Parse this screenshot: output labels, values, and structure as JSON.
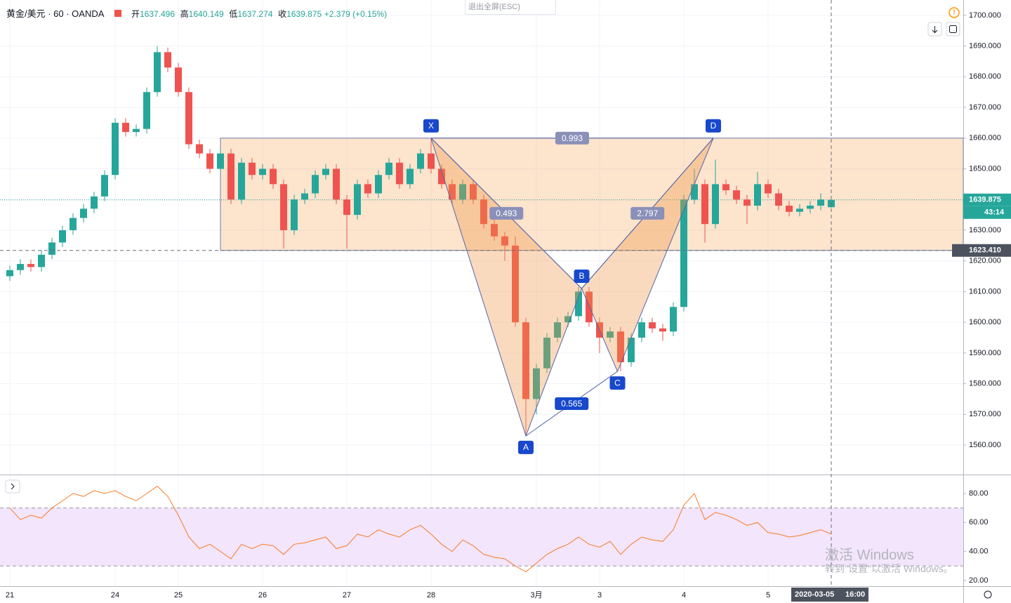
{
  "header": {
    "symbol": "黄金/美元 · 60 · OANDA",
    "open_label": "开",
    "open": "1637.496",
    "high_label": "高",
    "high": "1640.149",
    "low_label": "低",
    "low": "1637.274",
    "close_label": "收",
    "close": "1639.875",
    "change": "+2.379 (+0.15%)"
  },
  "ui": {
    "exit_fullscreen": "退出全屏(ESC)",
    "watermark_title": "激活 Windows",
    "watermark_text": "转到\"设置\"以激活 Windows。"
  },
  "chart_data": [
    {
      "type": "candlestick",
      "up_color": "#26a69a",
      "down_color": "#ef5350",
      "categories": [
        "21",
        null,
        null,
        null,
        null,
        null,
        null,
        null,
        null,
        null,
        "24",
        null,
        null,
        null,
        null,
        null,
        "25",
        null,
        null,
        null,
        null,
        null,
        null,
        null,
        "26",
        null,
        null,
        null,
        null,
        null,
        null,
        null,
        "27",
        null,
        null,
        null,
        null,
        null,
        null,
        null,
        "28",
        null,
        null,
        null,
        null,
        null,
        null,
        null,
        null,
        null,
        "3月",
        null,
        null,
        null,
        null,
        null,
        "3",
        null,
        null,
        null,
        null,
        null,
        null,
        null,
        "4",
        null,
        null,
        null,
        null,
        null,
        null,
        null,
        "5",
        null,
        null,
        null,
        null,
        null,
        null
      ],
      "open": [
        1615,
        1617,
        1619,
        1618,
        1622,
        1626,
        1630,
        1634,
        1637,
        1641,
        1648,
        1665,
        1662,
        1663,
        1675,
        1688,
        1683,
        1675,
        1658,
        1655,
        1650,
        1655,
        1640,
        1652,
        1648,
        1650,
        1645,
        1630,
        1640,
        1642,
        1648,
        1650,
        1640,
        1635,
        1645,
        1642,
        1648,
        1652,
        1645,
        1650,
        1655,
        1650,
        1645,
        1640,
        1645,
        1640,
        1632,
        1628,
        1625,
        1600,
        1575,
        1585,
        1595,
        1600,
        1602,
        1610,
        1600,
        1595,
        1597,
        1587,
        1595,
        1600,
        1598,
        1597,
        1605,
        1640,
        1645,
        1632,
        1645,
        1643,
        1640,
        1638,
        1645,
        1642,
        1638,
        1636,
        1637,
        1638,
        1637.496
      ],
      "high": [
        1618.5,
        1620.5,
        1620.5,
        1623.5,
        1627.5,
        1631.5,
        1635.5,
        1638.5,
        1642.5,
        1649.5,
        1666.5,
        1666.5,
        1664.5,
        1676.5,
        1690,
        1689.5,
        1684.5,
        1676.5,
        1659.5,
        1656.5,
        1656.5,
        1656.5,
        1653.5,
        1653.5,
        1651.5,
        1651.5,
        1646.5,
        1641.5,
        1643.5,
        1649.5,
        1651.5,
        1651.5,
        1641.5,
        1646.5,
        1646.5,
        1649.5,
        1653.5,
        1653.5,
        1651.5,
        1656.5,
        1660,
        1651.5,
        1646.5,
        1646.5,
        1646.5,
        1641.5,
        1633.5,
        1629.5,
        1628,
        1601.5,
        1586.5,
        1596.5,
        1601.5,
        1603.5,
        1611.5,
        1611.5,
        1601.5,
        1598.5,
        1598.5,
        1596.5,
        1601.5,
        1601.5,
        1599.5,
        1606.5,
        1641.5,
        1650,
        1646.5,
        1653,
        1646.5,
        1644.5,
        1641.5,
        1649,
        1646.5,
        1643.5,
        1639.5,
        1638.5,
        1639.5,
        1642,
        1640.149
      ],
      "low": [
        1613.5,
        1615.5,
        1616.5,
        1616.5,
        1620.5,
        1624.5,
        1628.5,
        1632.5,
        1635.5,
        1639.5,
        1646.5,
        1660.5,
        1660.5,
        1661.5,
        1673.5,
        1681.5,
        1673.5,
        1656.5,
        1653.5,
        1648.5,
        1648.5,
        1638.5,
        1638.5,
        1646.5,
        1646.5,
        1643.5,
        1624,
        1628.5,
        1638.5,
        1640.5,
        1646.5,
        1638.5,
        1624,
        1633.5,
        1640.5,
        1640.5,
        1646.5,
        1643.5,
        1643.5,
        1648.5,
        1648.5,
        1643.5,
        1638.5,
        1638.5,
        1638.5,
        1630.5,
        1626.5,
        1620,
        1598.5,
        1563,
        1570,
        1583.5,
        1593.5,
        1598.5,
        1600.5,
        1598.5,
        1590,
        1593.5,
        1584,
        1585.5,
        1593.5,
        1596.5,
        1594,
        1595.5,
        1603.5,
        1638.5,
        1626,
        1630.5,
        1641.5,
        1638.5,
        1632,
        1636.5,
        1640.5,
        1636.5,
        1634.5,
        1634.5,
        1635.5,
        1636.5,
        1637.274
      ],
      "close": [
        1617,
        1619,
        1618,
        1622,
        1626,
        1630,
        1634,
        1637,
        1641,
        1648,
        1665,
        1662,
        1663,
        1675,
        1688,
        1683,
        1675,
        1658,
        1655,
        1650,
        1655,
        1640,
        1652,
        1648,
        1650,
        1645,
        1630,
        1640,
        1642,
        1648,
        1650,
        1640,
        1635,
        1645,
        1642,
        1648,
        1652,
        1645,
        1650,
        1655,
        1650,
        1645,
        1640,
        1645,
        1640,
        1632,
        1628,
        1625,
        1600,
        1575,
        1585,
        1595,
        1600,
        1602,
        1610,
        1600,
        1595,
        1597,
        1587,
        1595,
        1600,
        1598,
        1597,
        1605,
        1640,
        1645,
        1632,
        1645,
        1643,
        1640,
        1638,
        1645,
        1642,
        1638,
        1636,
        1637,
        1638,
        1640,
        1639.875
      ],
      "ylim": [
        1550.4,
        1705
      ],
      "yticks": [
        {
          "value": 1560,
          "label": "1560.000"
        },
        {
          "value": 1570,
          "label": "1570.000"
        },
        {
          "value": 1580,
          "label": "1580.000"
        },
        {
          "value": 1590,
          "label": "1590.000"
        },
        {
          "value": 1600,
          "label": "1600.000"
        },
        {
          "value": 1610,
          "label": "1610.000"
        },
        {
          "value": 1620,
          "label": "1620.000"
        },
        {
          "value": 1630,
          "label": "1630.000"
        },
        {
          "value": 1640,
          "label": "1640.000"
        },
        {
          "value": 1650,
          "label": "1650.000"
        },
        {
          "value": 1660,
          "label": "1660.000"
        },
        {
          "value": 1670,
          "label": "1670.000"
        },
        {
          "value": 1680,
          "label": "1680.000"
        },
        {
          "value": 1690,
          "label": "1690.000"
        },
        {
          "value": 1700,
          "label": "1700.000"
        }
      ],
      "grid": true,
      "countdown": "43:14",
      "crosshair": {
        "price": {
          "value": 1623.41,
          "label": "1623.410"
        },
        "date": "2020-03-05",
        "time": "16:00"
      },
      "rectangle": {
        "start": 20,
        "top": 1660,
        "bottom": 1623.41
      },
      "pattern": {
        "points": [
          {
            "label": "X",
            "x": 40,
            "y": 1660
          },
          {
            "label": "A",
            "x": 49,
            "y": 1563
          },
          {
            "label": "B",
            "x": 54.3,
            "y": 1611
          },
          {
            "label": "C",
            "x": 57.7,
            "y": 1584
          },
          {
            "label": "D",
            "x": 66.8,
            "y": 1660
          }
        ],
        "ratios": [
          {
            "value": 0.993,
            "from": 0,
            "to": 4
          },
          {
            "value": 0.493,
            "from": 0,
            "to": 2
          },
          {
            "value": 2.797,
            "from": 2,
            "to": 4
          },
          {
            "value": 0.565,
            "from": 1,
            "to": 3
          }
        ]
      }
    },
    {
      "type": "line",
      "color": "#f57c28",
      "values": [
        70,
        62,
        65,
        63,
        70,
        75,
        80,
        78,
        82,
        80,
        82,
        78,
        75,
        80,
        85,
        78,
        65,
        50,
        42,
        45,
        40,
        35,
        45,
        42,
        45,
        44,
        38,
        45,
        46,
        48,
        50,
        42,
        44,
        52,
        50,
        55,
        52,
        50,
        55,
        58,
        52,
        45,
        40,
        48,
        44,
        38,
        36,
        35,
        30,
        26,
        32,
        38,
        42,
        45,
        50,
        45,
        43,
        47,
        38,
        45,
        50,
        48,
        47,
        55,
        72,
        80,
        62,
        67,
        65,
        62,
        58,
        60,
        53,
        52,
        50,
        51,
        53,
        55,
        52
      ],
      "ylim": [
        16.1,
        92.6
      ],
      "yticks": [
        {
          "value": 20,
          "label": "20.00"
        },
        {
          "value": 40,
          "label": "40.00"
        },
        {
          "value": 60,
          "label": "60.00"
        },
        {
          "value": 80,
          "label": "80.00"
        }
      ],
      "band": [
        30,
        70
      ]
    }
  ]
}
